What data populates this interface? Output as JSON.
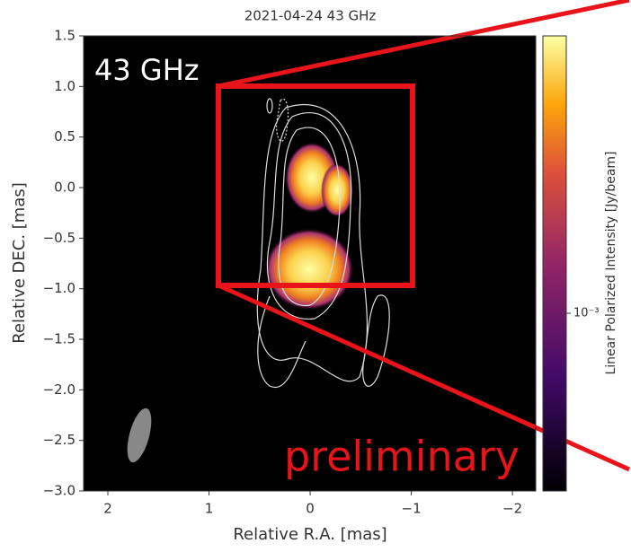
{
  "chart_data": {
    "type": "image",
    "title": "2021-04-24 43 GHz",
    "xlabel": "Relative R.A. [mas]",
    "ylabel": "Relative DEC. [mas]",
    "xlim": [
      2.24,
      -2.23
    ],
    "ylim": [
      -3.0,
      1.5
    ],
    "xticks": [
      2,
      1,
      0,
      {
        "value": -1,
        "label": "−1"
      },
      {
        "value": -2,
        "label": "−2"
      }
    ],
    "yticks": [
      1.5,
      {
        "value": 1.0,
        "label": "1.0"
      },
      0.5,
      {
        "value": 0.0,
        "label": "0.0"
      },
      {
        "value": -0.5,
        "label": "−0.5"
      },
      {
        "value": -1.0,
        "label": "−1.0"
      },
      {
        "value": -1.5,
        "label": "−1.5"
      },
      {
        "value": -2.0,
        "label": "−2.0"
      },
      {
        "value": -2.5,
        "label": "−2.5"
      },
      {
        "value": -3.0,
        "label": "−3.0"
      }
    ],
    "colorbar": {
      "label": "Linear Polarized Intensity [Jy/beam]",
      "scale": "log",
      "clim": [
        0.00025,
        0.0087
      ],
      "ticks": [
        {
          "value": 0.001,
          "label": "10⁻³"
        }
      ]
    },
    "annotations": [
      "43 GHz",
      "preliminary"
    ]
  }
}
